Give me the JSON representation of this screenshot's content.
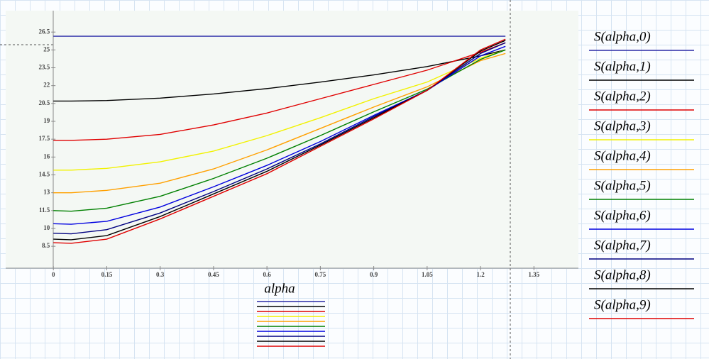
{
  "chart_data": {
    "type": "line",
    "x_label": "alpha",
    "x": [
      0,
      0.05,
      0.15,
      0.3,
      0.45,
      0.6,
      0.75,
      0.9,
      1.05,
      1.2,
      1.27
    ],
    "series": [
      {
        "name": "S(alpha,0)",
        "color": "#2a2aa6",
        "values": [
          26.15,
          26.15,
          26.15,
          26.15,
          26.15,
          26.15,
          26.15,
          26.15,
          26.15,
          26.15,
          26.15
        ]
      },
      {
        "name": "S(alpha,1)",
        "color": "#000000",
        "values": [
          20.7,
          20.7,
          20.75,
          20.95,
          21.3,
          21.75,
          22.3,
          22.9,
          23.6,
          24.5,
          25.0
        ]
      },
      {
        "name": "S(alpha,2)",
        "color": "#e00000",
        "values": [
          17.4,
          17.4,
          17.5,
          17.9,
          18.7,
          19.7,
          20.9,
          22.1,
          23.3,
          24.8,
          25.6
        ]
      },
      {
        "name": "S(alpha,3)",
        "color": "#f2f200",
        "values": [
          14.9,
          14.9,
          15.05,
          15.6,
          16.5,
          17.8,
          19.3,
          20.9,
          22.3,
          24.3,
          25.0
        ]
      },
      {
        "name": "S(alpha,4)",
        "color": "#ffa000",
        "values": [
          13.0,
          13.0,
          13.2,
          13.8,
          15.0,
          16.6,
          18.4,
          20.2,
          21.9,
          24.1,
          24.7
        ]
      },
      {
        "name": "S(alpha,5)",
        "color": "#008000",
        "values": [
          11.5,
          11.45,
          11.7,
          12.7,
          14.2,
          15.9,
          17.8,
          19.8,
          21.7,
          24.2,
          25.0
        ]
      },
      {
        "name": "S(alpha,6)",
        "color": "#0000e0",
        "values": [
          10.4,
          10.35,
          10.6,
          11.8,
          13.5,
          15.3,
          17.3,
          19.5,
          21.6,
          24.5,
          25.3
        ]
      },
      {
        "name": "S(alpha,7)",
        "color": "#000080",
        "values": [
          9.6,
          9.55,
          9.9,
          11.3,
          13.1,
          15.0,
          17.1,
          19.4,
          21.6,
          24.7,
          25.6
        ]
      },
      {
        "name": "S(alpha,8)",
        "color": "#000000",
        "values": [
          9.1,
          9.05,
          9.4,
          11.0,
          12.9,
          14.8,
          17.0,
          19.3,
          21.6,
          24.9,
          25.8
        ]
      },
      {
        "name": "S(alpha,9)",
        "color": "#e00000",
        "values": [
          8.8,
          8.75,
          9.1,
          10.8,
          12.7,
          14.6,
          16.9,
          19.2,
          21.6,
          25.0,
          25.9
        ]
      }
    ],
    "xlim": [
      -0.134,
      1.475
    ],
    "ylim": [
      6.66,
      28.3
    ],
    "xticks": [
      0,
      0.15,
      0.3,
      0.45,
      0.6,
      0.75,
      0.9,
      1.05,
      1.2,
      1.35
    ],
    "yticks": [
      8.5,
      10,
      11.5,
      13,
      14.5,
      16,
      17.5,
      19,
      20.5,
      22,
      23.5,
      25,
      26.5
    ]
  }
}
